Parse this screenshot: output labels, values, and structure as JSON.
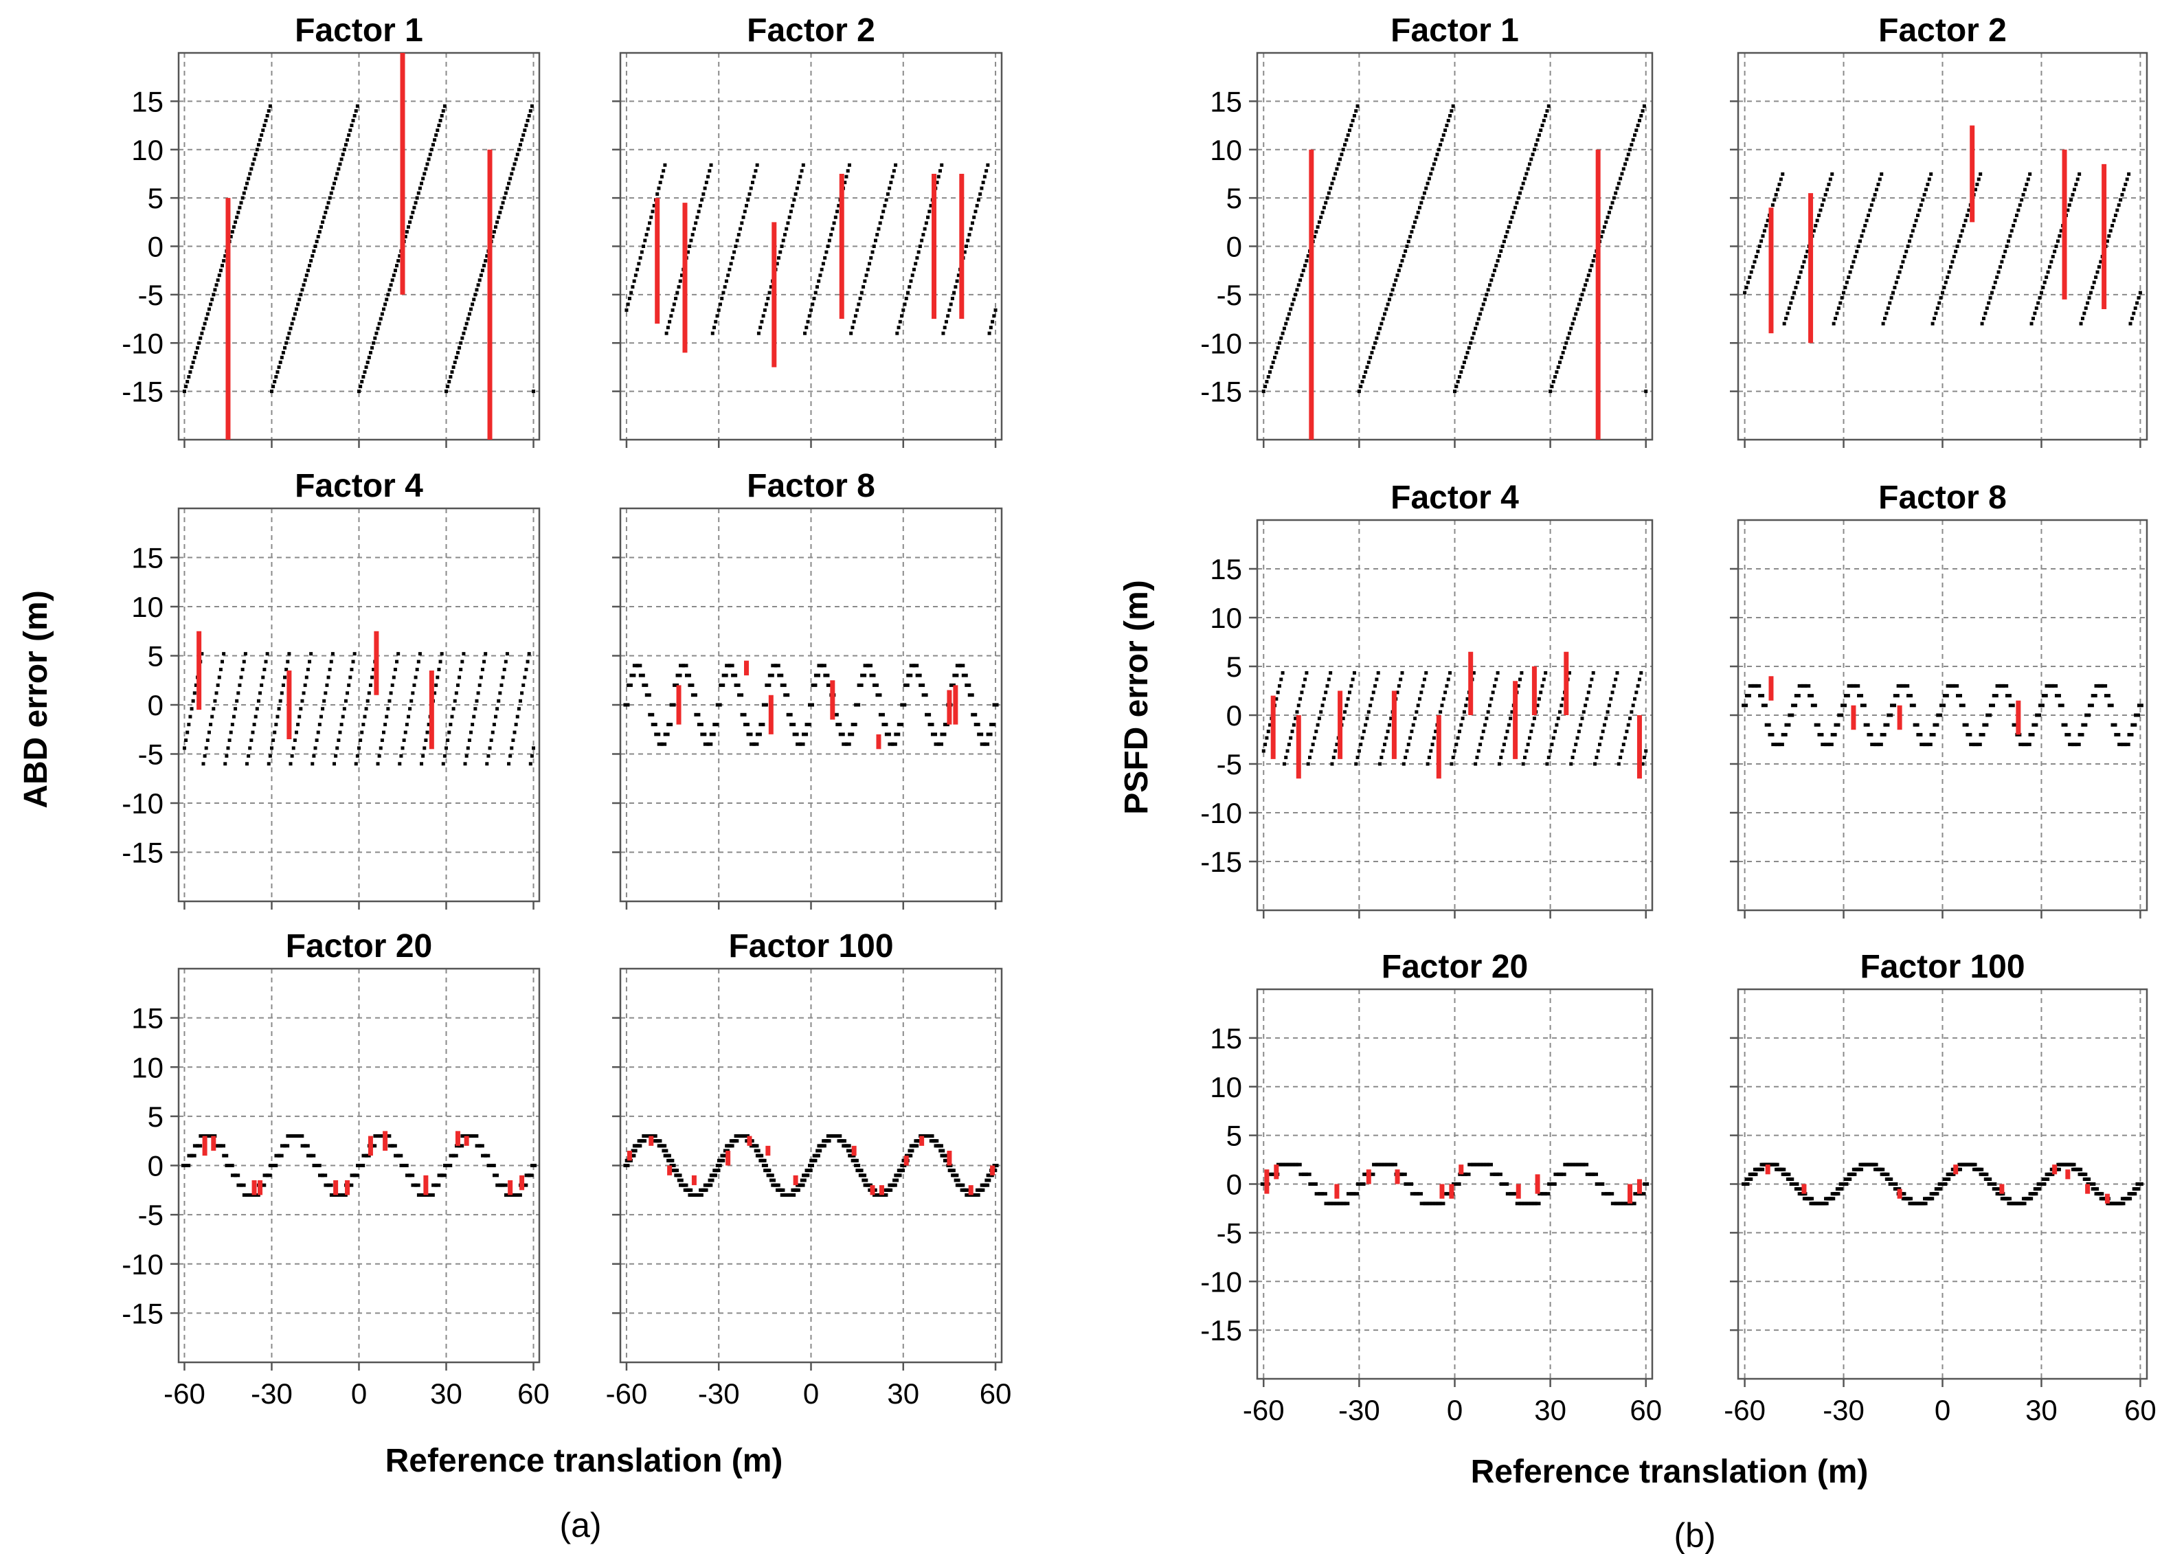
{
  "figure": {
    "caption_a": "(a)",
    "caption_b": "(b)",
    "xlabel_a": "Reference translation (m)",
    "xlabel_b": "Reference translation (m)",
    "ylabel_a": "ABD error  (m)",
    "ylabel_b": "PSFD error (m)"
  },
  "colors": {
    "dots": "#000000",
    "bars": "#ee2a2a",
    "grid": "#8a8a8a",
    "frame": "#555555"
  },
  "chart_data": [
    {
      "id": "a-f1",
      "group": "a",
      "type": "scatter",
      "title": "Factor   1",
      "factor": 1,
      "kind": "saw",
      "period": 30,
      "amp": 15,
      "phase": 0,
      "step": 0.5,
      "bars": [
        [
          -45,
          -20,
          5
        ],
        [
          15,
          -5,
          20
        ],
        [
          45,
          -20,
          10
        ]
      ],
      "xlim": [
        -62,
        62
      ],
      "ylim": [
        -20,
        20
      ],
      "xticks": [
        -60,
        -30,
        0,
        30,
        60
      ],
      "yticks": [
        15,
        10,
        5,
        0,
        -5,
        -10,
        -15
      ],
      "xlabel": "Reference translation (m)",
      "ylabel": "ABD error  (m)"
    },
    {
      "id": "a-f2",
      "group": "a",
      "type": "scatter",
      "title": "Factor   2",
      "factor": 2,
      "kind": "saw",
      "period": 15,
      "amp": 9,
      "phase": 2,
      "step": 0.5,
      "bars": [
        [
          -50,
          -8,
          5
        ],
        [
          -41,
          -11,
          4.5
        ],
        [
          -12,
          -12.5,
          2.5
        ],
        [
          10,
          -7.5,
          7.5
        ],
        [
          40,
          -7.5,
          7.5
        ],
        [
          49,
          -7.5,
          7.5
        ]
      ],
      "xlim": [
        -62,
        62
      ],
      "ylim": [
        -20,
        20
      ],
      "xticks": [
        -60,
        -30,
        0,
        30,
        60
      ],
      "yticks": [
        15,
        10,
        5,
        0,
        -5,
        -10,
        -15
      ],
      "xlabel": "Reference translation (m)",
      "ylabel": "ABD error  (m)"
    },
    {
      "id": "a-f4",
      "group": "a",
      "type": "scatter",
      "title": "Factor   4",
      "factor": 4,
      "kind": "saw",
      "period": 7.5,
      "amp": 6,
      "phase": 1,
      "step": 0.5,
      "bars": [
        [
          -55,
          -0.5,
          7.5
        ],
        [
          -24,
          -3.5,
          3.5
        ],
        [
          6,
          1,
          7.5
        ],
        [
          25,
          -4.5,
          3.5
        ]
      ],
      "xlim": [
        -62,
        62
      ],
      "ylim": [
        -20,
        20
      ],
      "xticks": [
        -60,
        -30,
        0,
        30,
        60
      ],
      "yticks": [
        15,
        10,
        5,
        0,
        -5,
        -10,
        -15
      ],
      "xlabel": "Reference translation (m)",
      "ylabel": "ABD error  (m)"
    },
    {
      "id": "a-f8",
      "group": "a",
      "type": "scatter",
      "title": "Factor   8",
      "factor": 8,
      "kind": "sin",
      "period": 15,
      "amp": 4,
      "phase": 0,
      "step": 1,
      "bars": [
        [
          -43,
          -2,
          2
        ],
        [
          -21,
          3,
          4.5
        ],
        [
          -13,
          -3,
          1
        ],
        [
          7,
          -1.5,
          2.5
        ],
        [
          22,
          -4.5,
          -3
        ],
        [
          45,
          -2,
          1.5
        ],
        [
          47,
          -2,
          2
        ]
      ],
      "xlim": [
        -62,
        62
      ],
      "ylim": [
        -20,
        20
      ],
      "xticks": [
        -60,
        -30,
        0,
        30,
        60
      ],
      "yticks": [
        15,
        10,
        5,
        0,
        -5,
        -10,
        -15
      ],
      "xlabel": "Reference translation (m)",
      "ylabel": "ABD error  (m)"
    },
    {
      "id": "a-f20",
      "group": "a",
      "type": "scatter",
      "title": "Factor  20",
      "factor": 20,
      "kind": "sin",
      "period": 30,
      "amp": 3,
      "phase": -0.5,
      "step": 1,
      "bars": [
        [
          -53,
          1,
          3
        ],
        [
          -50,
          1.5,
          3
        ],
        [
          -36,
          -3,
          -1.5
        ],
        [
          -34,
          -3,
          -1.5
        ],
        [
          -8,
          -3,
          -1.5
        ],
        [
          -4,
          -3,
          -1.5
        ],
        [
          4,
          1,
          3
        ],
        [
          9,
          1.5,
          3.5
        ],
        [
          23,
          -3,
          -1
        ],
        [
          34,
          2,
          3.5
        ],
        [
          37,
          2,
          3
        ],
        [
          52,
          -3,
          -1.5
        ],
        [
          56,
          -2.5,
          -1
        ]
      ],
      "xlim": [
        -62,
        62
      ],
      "ylim": [
        -20,
        20
      ],
      "xticks": [
        -60,
        -30,
        0,
        30,
        60
      ],
      "yticks": [
        15,
        10,
        5,
        0,
        -5,
        -10,
        -15
      ],
      "xlabel": "Reference translation (m)",
      "ylabel": "ABD error  (m)"
    },
    {
      "id": "a-f100",
      "group": "a",
      "type": "scatter",
      "title": "Factor 100",
      "factor": 100,
      "kind": "smooth",
      "period": 30,
      "amp": 3,
      "phase": 0,
      "step": 0.5,
      "bars": [
        [
          -59,
          0.5,
          1.5
        ],
        [
          -52,
          2,
          3
        ],
        [
          -46,
          -1,
          0
        ],
        [
          -38,
          -2,
          -1
        ],
        [
          -27,
          0,
          1.5
        ],
        [
          -20,
          2,
          3
        ],
        [
          -14,
          1,
          2
        ],
        [
          -5,
          -2,
          -1
        ],
        [
          14,
          1,
          2
        ],
        [
          20,
          -3,
          -2
        ],
        [
          23,
          -3,
          -2
        ],
        [
          31,
          0,
          1
        ],
        [
          36,
          2,
          3
        ],
        [
          45,
          0,
          1.5
        ],
        [
          52,
          -3,
          -2
        ],
        [
          59,
          -1,
          0
        ]
      ],
      "xlim": [
        -62,
        62
      ],
      "ylim": [
        -20,
        20
      ],
      "xticks": [
        -60,
        -30,
        0,
        30,
        60
      ],
      "yticks": [
        15,
        10,
        5,
        0,
        -5,
        -10,
        -15
      ],
      "xlabel": "Reference translation (m)",
      "ylabel": "ABD error  (m)"
    },
    {
      "id": "b-f1",
      "group": "b",
      "type": "scatter",
      "title": "Factor   1",
      "factor": 1,
      "kind": "saw",
      "period": 30,
      "amp": 15,
      "phase": 0,
      "step": 0.5,
      "bars": [
        [
          -45,
          -20,
          10
        ],
        [
          45,
          -20,
          10
        ]
      ],
      "xlim": [
        -62,
        62
      ],
      "ylim": [
        -20,
        20
      ],
      "xticks": [
        -60,
        -30,
        0,
        30,
        60
      ],
      "yticks": [
        15,
        10,
        5,
        0,
        -5,
        -10,
        -15
      ],
      "xlabel": "Reference translation (m)",
      "ylabel": "PSFD error (m)"
    },
    {
      "id": "b-f2",
      "group": "b",
      "type": "scatter",
      "title": "Factor   2",
      "factor": 2,
      "kind": "saw",
      "period": 15,
      "amp": 8,
      "phase": 3,
      "step": 0.5,
      "bars": [
        [
          -52,
          -9,
          4
        ],
        [
          -40,
          -10,
          5.5
        ],
        [
          9,
          2.5,
          12.5
        ],
        [
          37,
          -5.5,
          10
        ],
        [
          49,
          -6.5,
          8.5
        ]
      ],
      "xlim": [
        -62,
        62
      ],
      "ylim": [
        -20,
        20
      ],
      "xticks": [
        -60,
        -30,
        0,
        30,
        60
      ],
      "yticks": [
        15,
        10,
        5,
        0,
        -5,
        -10,
        -15
      ],
      "xlabel": "Reference translation (m)",
      "ylabel": "PSFD error (m)"
    },
    {
      "id": "b-f4",
      "group": "b",
      "type": "scatter",
      "title": "Factor   4",
      "factor": 4,
      "kind": "saw",
      "period": 7.5,
      "amp": 5,
      "phase": 1,
      "step": 0.5,
      "bars": [
        [
          -57,
          -4.5,
          2
        ],
        [
          -49,
          -6.5,
          0
        ],
        [
          -36,
          -4.5,
          2.5
        ],
        [
          -19,
          -4.5,
          2.5
        ],
        [
          -5,
          -6.5,
          0
        ],
        [
          5,
          0,
          6.5
        ],
        [
          19,
          -4.5,
          3.5
        ],
        [
          25,
          0,
          5
        ],
        [
          35,
          0,
          6.5
        ],
        [
          58,
          -6.5,
          0
        ]
      ],
      "xlim": [
        -62,
        62
      ],
      "ylim": [
        -20,
        20
      ],
      "xticks": [
        -60,
        -30,
        0,
        30,
        60
      ],
      "yticks": [
        15,
        10,
        5,
        0,
        -5,
        -10,
        -15
      ],
      "xlabel": "Reference translation (m)",
      "ylabel": "PSFD error (m)"
    },
    {
      "id": "b-f8",
      "group": "b",
      "type": "scatter",
      "title": "Factor   8",
      "factor": 8,
      "kind": "sin",
      "period": 15,
      "amp": 3,
      "phase": 1,
      "step": 1,
      "bars": [
        [
          -52,
          1.5,
          4
        ],
        [
          -27,
          -1.5,
          1
        ],
        [
          -13,
          -1.5,
          1
        ],
        [
          23,
          -2,
          1.5
        ]
      ],
      "xlim": [
        -62,
        62
      ],
      "ylim": [
        -20,
        20
      ],
      "xticks": [
        -60,
        -30,
        0,
        30,
        60
      ],
      "yticks": [
        15,
        10,
        5,
        0,
        -5,
        -10,
        -15
      ],
      "xlabel": "Reference translation (m)",
      "ylabel": "PSFD error (m)"
    },
    {
      "id": "b-f20",
      "group": "b",
      "type": "scatter",
      "title": "Factor  20",
      "factor": 20,
      "kind": "sin",
      "period": 30,
      "amp": 2,
      "phase": -0.5,
      "step": 1,
      "bars": [
        [
          -59,
          -1,
          1.5
        ],
        [
          -56,
          0.5,
          2
        ],
        [
          -37,
          -1.5,
          0
        ],
        [
          -27,
          0,
          1.5
        ],
        [
          -18,
          0,
          1.5
        ],
        [
          -4,
          -1.5,
          0
        ],
        [
          -1,
          -1.5,
          0
        ],
        [
          2,
          1,
          2
        ],
        [
          20,
          -1.5,
          0
        ],
        [
          26,
          -1,
          1
        ],
        [
          55,
          -2,
          0
        ],
        [
          58,
          -1,
          0.5
        ]
      ],
      "xlim": [
        -62,
        62
      ],
      "ylim": [
        -20,
        20
      ],
      "xticks": [
        -60,
        -30,
        0,
        30,
        60
      ],
      "yticks": [
        15,
        10,
        5,
        0,
        -5,
        -10,
        -15
      ],
      "xlabel": "Reference translation (m)",
      "ylabel": "PSFD error (m)"
    },
    {
      "id": "b-f100",
      "group": "b",
      "type": "scatter",
      "title": "Factor 100",
      "factor": 100,
      "kind": "smooth",
      "period": 30,
      "amp": 2,
      "phase": 0,
      "step": 0.5,
      "bars": [
        [
          -53,
          1,
          2
        ],
        [
          -42,
          -1,
          0
        ],
        [
          -13,
          -1.5,
          -0.5
        ],
        [
          4,
          1,
          2
        ],
        [
          18,
          -1,
          0
        ],
        [
          34,
          1,
          2
        ],
        [
          38,
          0.5,
          1.5
        ],
        [
          44,
          -1,
          0
        ],
        [
          50,
          -2,
          -1
        ]
      ],
      "xlim": [
        -62,
        62
      ],
      "ylim": [
        -20,
        20
      ],
      "xticks": [
        -60,
        -30,
        0,
        30,
        60
      ],
      "yticks": [
        15,
        10,
        5,
        0,
        -5,
        -10,
        -15
      ],
      "xlabel": "Reference translation (m)",
      "ylabel": "PSFD error (m)"
    }
  ]
}
